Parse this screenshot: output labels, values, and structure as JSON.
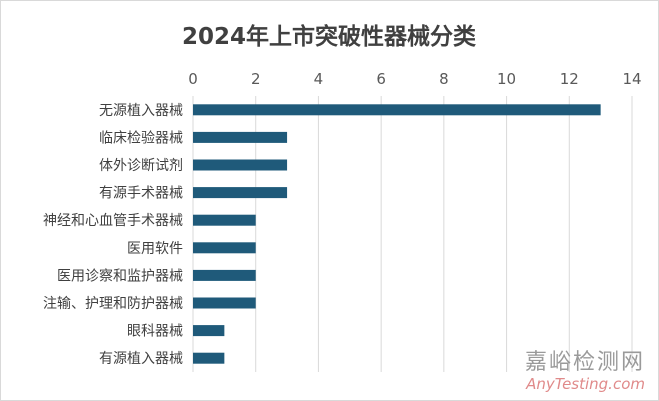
{
  "chart_data": {
    "type": "bar",
    "orientation": "horizontal",
    "title": "2024年上市突破性器械分类",
    "categories": [
      "无源植入器械",
      "临床检验器械",
      "体外诊断试剂",
      "有源手术器械",
      "神经和心血管手术器械",
      "医用软件",
      "医用诊察和监护器械",
      "注输、护理和防护器械",
      "眼科器械",
      "有源植入器械"
    ],
    "values": [
      13,
      3,
      3,
      3,
      2,
      2,
      2,
      2,
      1,
      1
    ],
    "xticks": [
      "0",
      "2",
      "4",
      "6",
      "8",
      "10",
      "12",
      "14"
    ],
    "xlim": [
      0,
      14
    ],
    "grid": "vertical",
    "legend": "none",
    "bar_color": "#1f5a7a",
    "grid_color": "#d9d9d9"
  },
  "watermark": {
    "brand": "嘉峪检测网",
    "site": "AnyTesting.com"
  }
}
